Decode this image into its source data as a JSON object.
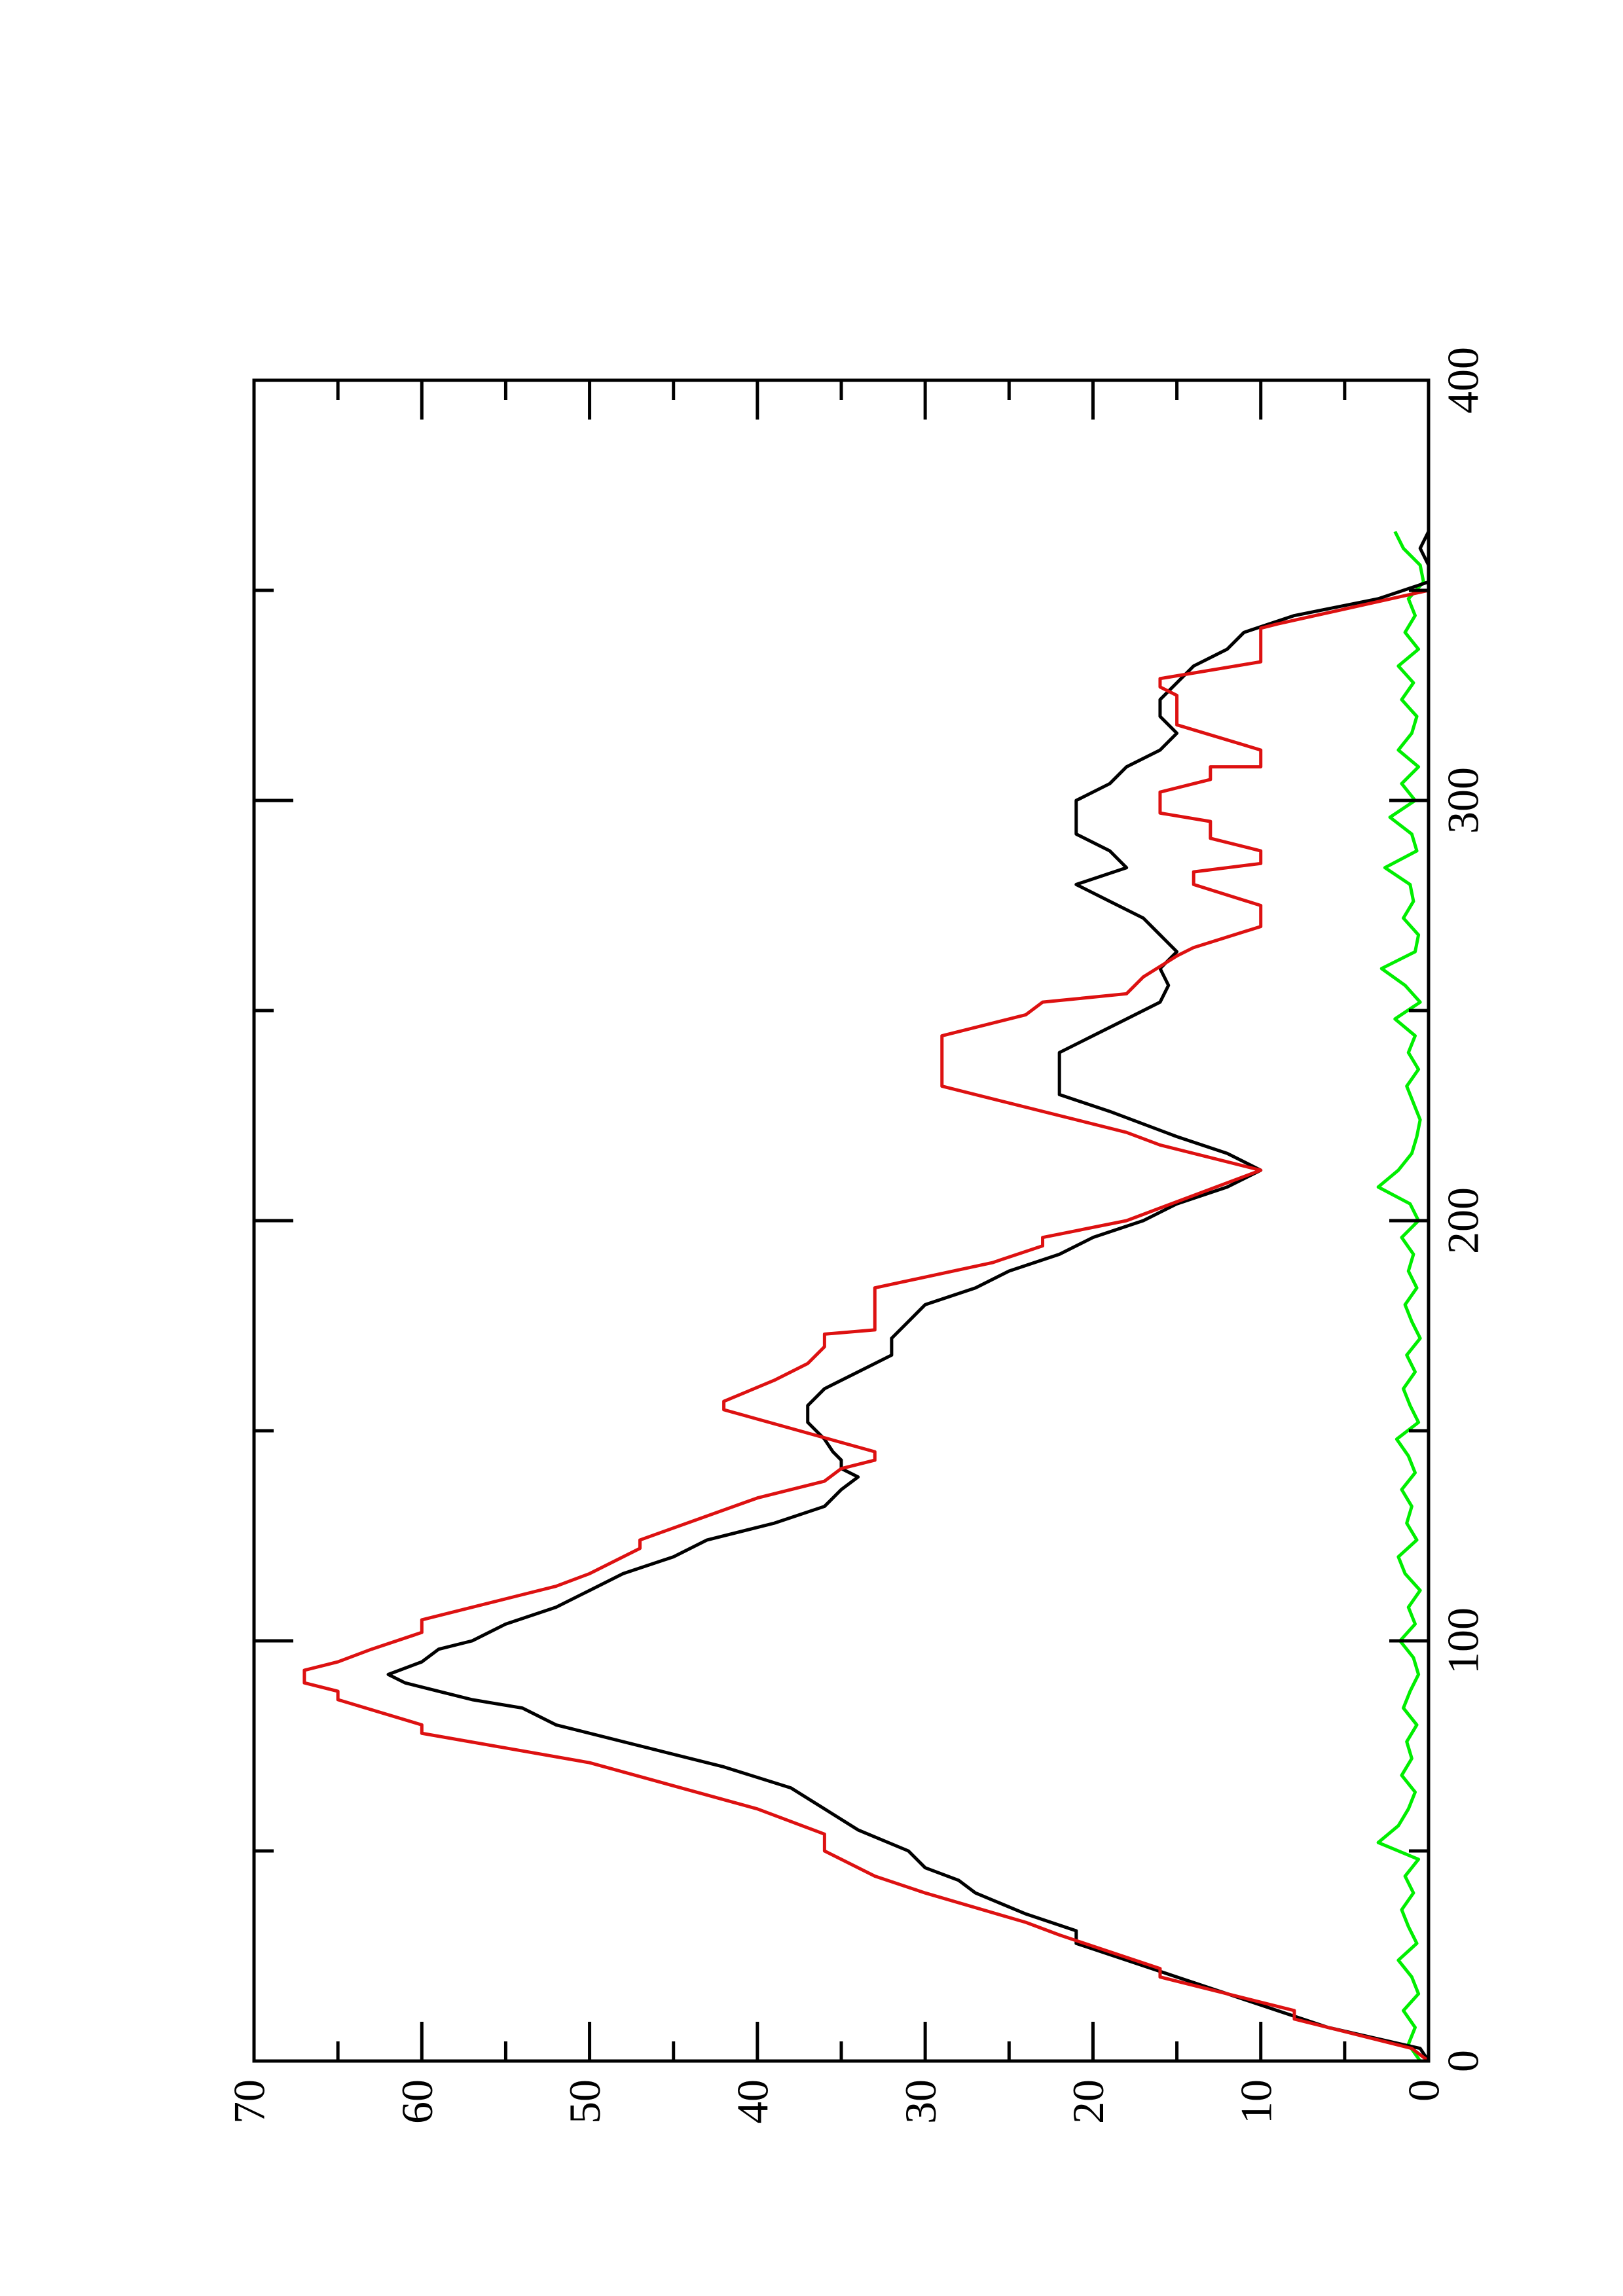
{
  "chart_data": {
    "type": "line",
    "xlim": [
      0,
      400
    ],
    "xticks": [
      0,
      100,
      200,
      300,
      400
    ],
    "xminorticks": [
      50,
      150,
      250,
      350
    ],
    "ylim": [
      0,
      70
    ],
    "yticks": [
      0,
      10,
      20,
      30,
      40,
      50,
      60,
      70
    ],
    "yminorticks": [
      5,
      15,
      25,
      35,
      45,
      55,
      65
    ],
    "rotation": -90,
    "series": [
      {
        "color": "#00ee00",
        "x": [
          0,
          4,
          8,
          12,
          16,
          20,
          24,
          28,
          32,
          36,
          40,
          44,
          48,
          52,
          56,
          60,
          64,
          68,
          72,
          76,
          80,
          84,
          88,
          92,
          96,
          100,
          104,
          108,
          112,
          116,
          120,
          124,
          128,
          132,
          136,
          140,
          144,
          148,
          152,
          156,
          160,
          164,
          168,
          172,
          176,
          180,
          184,
          188,
          192,
          196,
          200,
          204,
          208,
          212,
          216,
          220,
          224,
          228,
          232,
          236,
          240,
          244,
          248,
          252,
          256,
          260,
          264,
          268,
          272,
          276,
          280,
          284,
          288,
          292,
          296,
          300,
          304,
          308,
          312,
          316,
          320,
          324,
          328,
          332,
          336,
          340,
          344,
          348,
          352,
          356,
          360,
          364
        ],
        "values": [
          0.5,
          1.2,
          0.8,
          1.5,
          0.6,
          1.0,
          1.8,
          0.7,
          1.2,
          1.6,
          0.9,
          1.4,
          0.6,
          3.0,
          1.8,
          1.2,
          0.8,
          1.6,
          1.0,
          1.3,
          0.7,
          1.5,
          1.1,
          0.6,
          0.9,
          1.7,
          0.8,
          1.2,
          0.5,
          1.4,
          1.8,
          0.7,
          1.3,
          1.0,
          1.6,
          0.8,
          1.2,
          1.9,
          0.6,
          1.1,
          1.5,
          0.8,
          1.3,
          0.5,
          1.0,
          1.4,
          0.7,
          1.2,
          0.9,
          1.6,
          0.6,
          1.1,
          3.0,
          1.8,
          1.0,
          0.7,
          0.5,
          0.9,
          1.3,
          0.6,
          1.2,
          0.8,
          2.0,
          0.5,
          1.4,
          2.8,
          0.8,
          0.6,
          1.5,
          0.9,
          1.1,
          2.6,
          0.7,
          1.0,
          2.3,
          0.8,
          1.6,
          0.6,
          1.8,
          1.0,
          0.7,
          1.6,
          0.9,
          1.8,
          0.6,
          1.4,
          0.8,
          1.2,
          0.3,
          0.5,
          1.5,
          2.0
        ]
      },
      {
        "color": "#000000",
        "x": [
          0,
          3,
          8,
          12,
          16,
          20,
          24,
          28,
          31,
          35,
          40,
          43,
          46,
          50,
          55,
          60,
          65,
          70,
          75,
          80,
          84,
          86,
          88,
          90,
          92,
          95,
          98,
          100,
          104,
          108,
          112,
          116,
          120,
          124,
          128,
          132,
          136,
          139,
          141,
          143,
          145,
          148,
          152,
          156,
          160,
          164,
          168,
          172,
          176,
          180,
          184,
          188,
          192,
          196,
          200,
          204,
          208,
          212,
          216,
          220,
          226,
          230,
          240,
          244,
          248,
          252,
          256,
          260,
          264,
          268,
          272,
          276,
          280,
          284,
          288,
          292,
          300,
          304,
          308,
          312,
          316,
          320,
          324,
          328,
          332,
          336,
          340,
          344,
          348,
          352,
          356,
          360,
          364
        ],
        "values": [
          0,
          0.5,
          6,
          9,
          12,
          15,
          18,
          21,
          21,
          24,
          27,
          28,
          30,
          31,
          34,
          36,
          38,
          42,
          47,
          52,
          54,
          57,
          59,
          61,
          62,
          60,
          59,
          57,
          55,
          52,
          50,
          48,
          45,
          43,
          39,
          36,
          35,
          34,
          35,
          35,
          35.5,
          36,
          37,
          37,
          36,
          34,
          32,
          32,
          31,
          30,
          27,
          25,
          22,
          20,
          17,
          15,
          12,
          10,
          12,
          15,
          19,
          22,
          22,
          20,
          18,
          16,
          15.5,
          16,
          15,
          16,
          17,
          19,
          21,
          18,
          19,
          21,
          21,
          19,
          18,
          16,
          15,
          16,
          16,
          15,
          14,
          12,
          11,
          8,
          3,
          0,
          0,
          0.5,
          0
        ]
      },
      {
        "color": "#dd1111",
        "x": [
          0,
          3,
          10,
          12,
          20,
          22,
          30,
          33,
          40,
          44,
          50,
          54,
          60,
          71,
          78,
          80,
          86,
          88,
          90,
          93,
          95,
          98,
          102,
          105,
          111,
          113,
          116,
          122,
          124,
          134,
          138,
          141,
          143,
          145,
          155,
          157,
          162,
          166,
          170,
          173,
          174,
          184,
          190,
          194,
          196,
          200,
          212,
          218,
          221,
          232,
          244,
          249,
          252,
          254,
          258,
          263,
          265,
          270,
          275,
          280,
          283,
          285,
          288,
          291,
          295,
          297,
          302,
          305,
          308,
          308,
          312,
          318,
          325,
          327,
          329,
          333,
          341,
          342,
          350
        ],
        "values": [
          0,
          1,
          8,
          8,
          16,
          16,
          22,
          24,
          30,
          33,
          36,
          36,
          40,
          50,
          60,
          60,
          65,
          65,
          67,
          67,
          65,
          63,
          60,
          60,
          54,
          52,
          50,
          47,
          47,
          40,
          36,
          35,
          33,
          33,
          42,
          42,
          39,
          37,
          36,
          36,
          33,
          33,
          26,
          23,
          23,
          18,
          10,
          16,
          18,
          29,
          29,
          24,
          23,
          18,
          17,
          15,
          14,
          10,
          10,
          14,
          14,
          10,
          10,
          13,
          13,
          16,
          16,
          13,
          13,
          10,
          10,
          15,
          15,
          16,
          16,
          10,
          10,
          9,
          0
        ]
      }
    ]
  }
}
